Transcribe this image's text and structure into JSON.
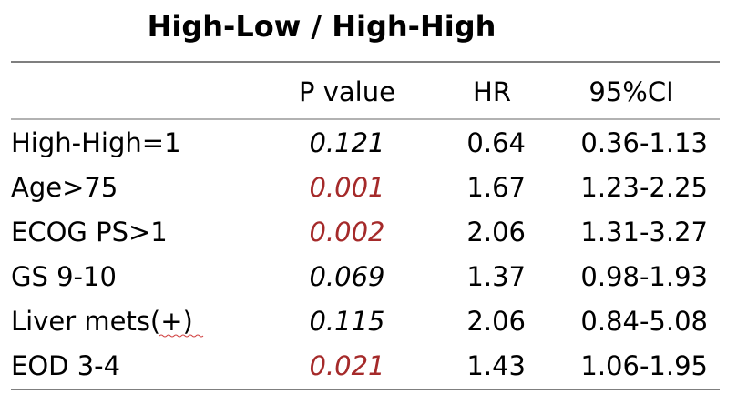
{
  "title": "High-Low / High-High",
  "table": {
    "header": [
      "",
      "P value",
      "HR",
      "95%CI"
    ],
    "rows": [
      {
        "label": "High-High=1",
        "p": "0.121",
        "p_color": "#000000",
        "hr": "0.64",
        "ci": "0.36-1.13"
      },
      {
        "label": "Age>75",
        "p": "0.001",
        "p_color": "#a52a2a",
        "hr": "1.67",
        "ci": "1.23-2.25"
      },
      {
        "label": "ECOG PS>1",
        "p": "0.002",
        "p_color": "#a52a2a",
        "hr": "2.06",
        "ci": "1.31-3.27"
      },
      {
        "label": "GS 9-10",
        "p": "0.069",
        "p_color": "#000000",
        "hr": "1.37",
        "ci": "0.98-1.93"
      },
      {
        "label": "Liver mets(+)",
        "p": "0.115",
        "p_color": "#000000",
        "hr": "2.06",
        "ci": "0.84-5.08"
      },
      {
        "label": "EOD 3-4",
        "p": "0.021",
        "p_color": "#a52a2a",
        "hr": "1.43",
        "ci": "1.06-1.95"
      }
    ]
  }
}
